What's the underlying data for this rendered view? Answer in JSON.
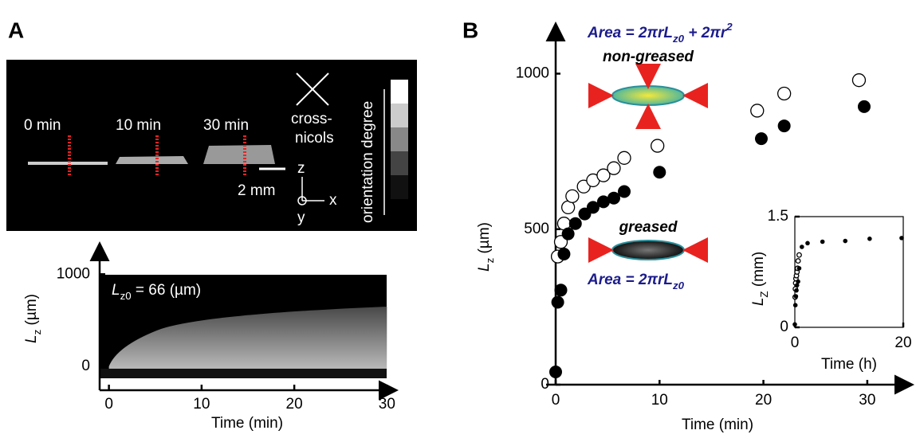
{
  "panel_labels": [
    "A",
    "B"
  ],
  "image_a": {
    "times": [
      "0 min",
      "10 min",
      "30 min"
    ],
    "polarizer": [
      "cross-",
      "nicols"
    ],
    "scale_bar": "2 mm",
    "axes": [
      "z",
      "x",
      "y"
    ],
    "colorbar_label": "orientation degree"
  },
  "chart_data": [
    {
      "type": "image",
      "ylabel": [
        "L",
        "z",
        " (µm)"
      ],
      "xlabel": "Time (min)",
      "annotation": [
        "L",
        "z0",
        " = 66 (µm)"
      ],
      "xlim": [
        -1,
        31
      ],
      "ylim": [
        -260,
        1340
      ],
      "xticks": [
        0,
        10,
        20,
        30
      ],
      "yticks": [
        0,
        1000
      ]
    },
    {
      "type": "scatter",
      "xlabel": "Time (min)",
      "ylabel": [
        "L",
        "z",
        " (µm)"
      ],
      "xlim": [
        0,
        34
      ],
      "ylim": [
        0,
        1160
      ],
      "xticks": [
        0,
        10,
        20,
        30
      ],
      "yticks": [
        0,
        500,
        1000
      ],
      "annotations": [
        [
          "Area = 2",
          "π",
          "rL",
          "z0",
          " + 2",
          "π",
          "r",
          "2"
        ],
        [
          "non-greased"
        ],
        [
          "greased"
        ],
        [
          "Area = 2",
          "π",
          "rL",
          "z0"
        ]
      ],
      "series": [
        {
          "marker": "open",
          "color": "#000000",
          "x": [
            0.2,
            0.5,
            0.8,
            1.2,
            1.6,
            2.7,
            3.6,
            4.6,
            5.6,
            6.6,
            9.8,
            19.4,
            22,
            29.2
          ],
          "values": [
            412,
            459,
            518,
            570,
            606,
            637,
            657,
            673,
            696,
            729,
            768,
            881,
            936,
            979
          ]
        },
        {
          "marker": "filled",
          "color": "#000000",
          "x": [
            0,
            0.2,
            0.5,
            0.8,
            1.2,
            1.9,
            2.8,
            3.6,
            4.6,
            5.6,
            6.6,
            10,
            19.8,
            22,
            29.7
          ],
          "values": [
            41,
            265,
            304,
            420,
            485,
            518,
            549,
            570,
            588,
            600,
            621,
            683,
            791,
            832,
            894
          ]
        }
      ]
    },
    {
      "type": "scatter",
      "xlabel": "Time (h)",
      "ylabel": [
        "L",
        "Z",
        " (mm)"
      ],
      "xlim": [
        0,
        20
      ],
      "ylim": [
        0,
        1.5
      ],
      "xticks": [
        0,
        20
      ],
      "yticks": [
        0,
        1.5
      ],
      "series": [
        {
          "marker": "open",
          "color": "#000000",
          "x": [
            0.05,
            0.1,
            0.15,
            0.2,
            0.3,
            0.4,
            0.5,
            0.6,
            0.8
          ],
          "values": [
            0.41,
            0.52,
            0.6,
            0.66,
            0.7,
            0.75,
            0.8,
            0.9,
            0.98
          ]
        },
        {
          "marker": "filled",
          "color": "#000000",
          "x": [
            0,
            0.1,
            0.2,
            0.3,
            0.4,
            0.6,
            0.8,
            1.3,
            2.35,
            5.1,
            9.3,
            13.8,
            19.7
          ],
          "values": [
            0.04,
            0.3,
            0.42,
            0.5,
            0.57,
            0.62,
            0.8,
            1.09,
            1.14,
            1.16,
            1.17,
            1.2,
            1.21
          ]
        }
      ]
    }
  ]
}
